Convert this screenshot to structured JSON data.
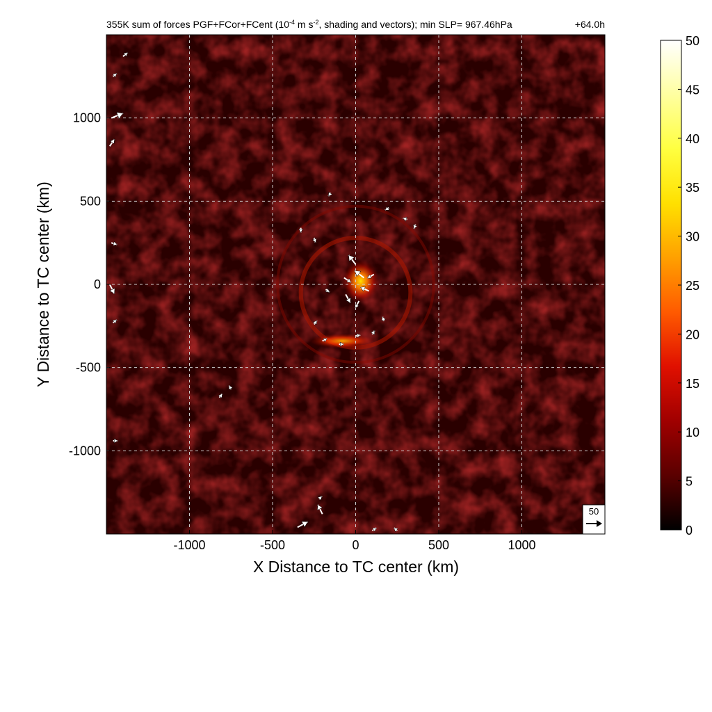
{
  "chart_data": {
    "type": "heatmap",
    "title": "355K sum of forces PGF+FCor+FCent",
    "title_units": {
      "before_exponent": " (10",
      "exponent": "-4",
      "middle": " m s",
      "exponent2": "-2",
      "after": ", shading and vectors); min SLP= 967.46hPa"
    },
    "time_label": "+64.0h",
    "xlabel": "X Distance to TC center (km)",
    "ylabel": "Y Distance to TC center (km)",
    "xlim": [
      -1500,
      1500
    ],
    "ylim": [
      -1500,
      1500
    ],
    "xticks": [
      -1000,
      -500,
      0,
      500,
      1000
    ],
    "xtick_labels": [
      "-1000",
      "-500",
      "0",
      "500",
      "1000"
    ],
    "yticks": [
      -1000,
      -500,
      0,
      500,
      1000
    ],
    "ytick_labels": [
      "-1000",
      "-500",
      "0",
      "500",
      "1000"
    ],
    "grid": true,
    "colorbar": {
      "range": [
        0,
        50
      ],
      "ticks": [
        0,
        5,
        10,
        15,
        20,
        25,
        30,
        35,
        40,
        45,
        50
      ],
      "tick_labels": [
        "0",
        "5",
        "10",
        "15",
        "20",
        "25",
        "30",
        "35",
        "40",
        "45",
        "50"
      ],
      "colormap": [
        "#000000",
        "#5a0000",
        "#a00000",
        "#e01000",
        "#ff5a00",
        "#ffa000",
        "#ffe000",
        "#ffff40",
        "#ffffa0",
        "#ffffff"
      ]
    },
    "reference_vector": {
      "label": "50",
      "value": 50
    },
    "features": {
      "background_magnitude": 5,
      "eyewall_ring": {
        "center": [
          0,
          -50
        ],
        "radius": 330,
        "magnitude": 10
      },
      "outer_spiral": {
        "center": [
          0,
          0
        ],
        "radius": 470,
        "magnitude": 8
      },
      "core_max": {
        "center": [
          30,
          20
        ],
        "magnitude": 40
      },
      "south_band": {
        "center": [
          -80,
          -340
        ],
        "magnitude": 26
      }
    },
    "vectors": [
      {
        "x": 0,
        "y": 120,
        "u": -15,
        "v": 20
      },
      {
        "x": 50,
        "y": 40,
        "u": -20,
        "v": 15
      },
      {
        "x": 80,
        "y": -40,
        "u": -18,
        "v": 8
      },
      {
        "x": 20,
        "y": -100,
        "u": -8,
        "v": -15
      },
      {
        "x": -60,
        "y": -60,
        "u": 10,
        "v": -18
      },
      {
        "x": -70,
        "y": 40,
        "u": 15,
        "v": -10
      },
      {
        "x": -180,
        "y": -30,
        "u": 8,
        "v": -6
      },
      {
        "x": 110,
        "y": 60,
        "u": -14,
        "v": -8
      },
      {
        "x": -250,
        "y": -240,
        "u": 6,
        "v": 8
      },
      {
        "x": -200,
        "y": -340,
        "u": 10,
        "v": 5
      },
      {
        "x": -100,
        "y": -360,
        "u": 10,
        "v": 0
      },
      {
        "x": 0,
        "y": -310,
        "u": 10,
        "v": 2
      },
      {
        "x": 100,
        "y": -300,
        "u": 5,
        "v": 8
      },
      {
        "x": 170,
        "y": -220,
        "u": -3,
        "v": 9
      },
      {
        "x": -330,
        "y": 340,
        "u": 0,
        "v": -10
      },
      {
        "x": -250,
        "y": 280,
        "u": 3,
        "v": -10
      },
      {
        "x": 200,
        "y": 460,
        "u": -8,
        "v": -5
      },
      {
        "x": 310,
        "y": 390,
        "u": -9,
        "v": 3
      },
      {
        "x": 360,
        "y": 360,
        "u": -3,
        "v": -9
      },
      {
        "x": -150,
        "y": 550,
        "u": -5,
        "v": -7
      },
      {
        "x": -820,
        "y": -680,
        "u": 6,
        "v": 8
      },
      {
        "x": -750,
        "y": -630,
        "u": -4,
        "v": 8
      },
      {
        "x": -1470,
        "y": 1000,
        "u": 25,
        "v": 10
      },
      {
        "x": -1480,
        "y": 830,
        "u": 10,
        "v": 15
      },
      {
        "x": -1480,
        "y": 0,
        "u": 10,
        "v": -20
      },
      {
        "x": -1470,
        "y": 250,
        "u": 12,
        "v": -4
      },
      {
        "x": -1460,
        "y": -230,
        "u": 8,
        "v": 6
      },
      {
        "x": -1460,
        "y": -940,
        "u": 10,
        "v": 0
      },
      {
        "x": -200,
        "y": -1380,
        "u": -10,
        "v": 20
      },
      {
        "x": -350,
        "y": -1460,
        "u": 22,
        "v": 12
      },
      {
        "x": -220,
        "y": -1290,
        "u": 6,
        "v": 6
      },
      {
        "x": -1400,
        "y": 1370,
        "u": 10,
        "v": 8
      },
      {
        "x": -1460,
        "y": 1250,
        "u": 8,
        "v": 6
      },
      {
        "x": 100,
        "y": -1480,
        "u": 9,
        "v": 6
      },
      {
        "x": 250,
        "y": -1480,
        "u": -7,
        "v": 6
      }
    ]
  }
}
